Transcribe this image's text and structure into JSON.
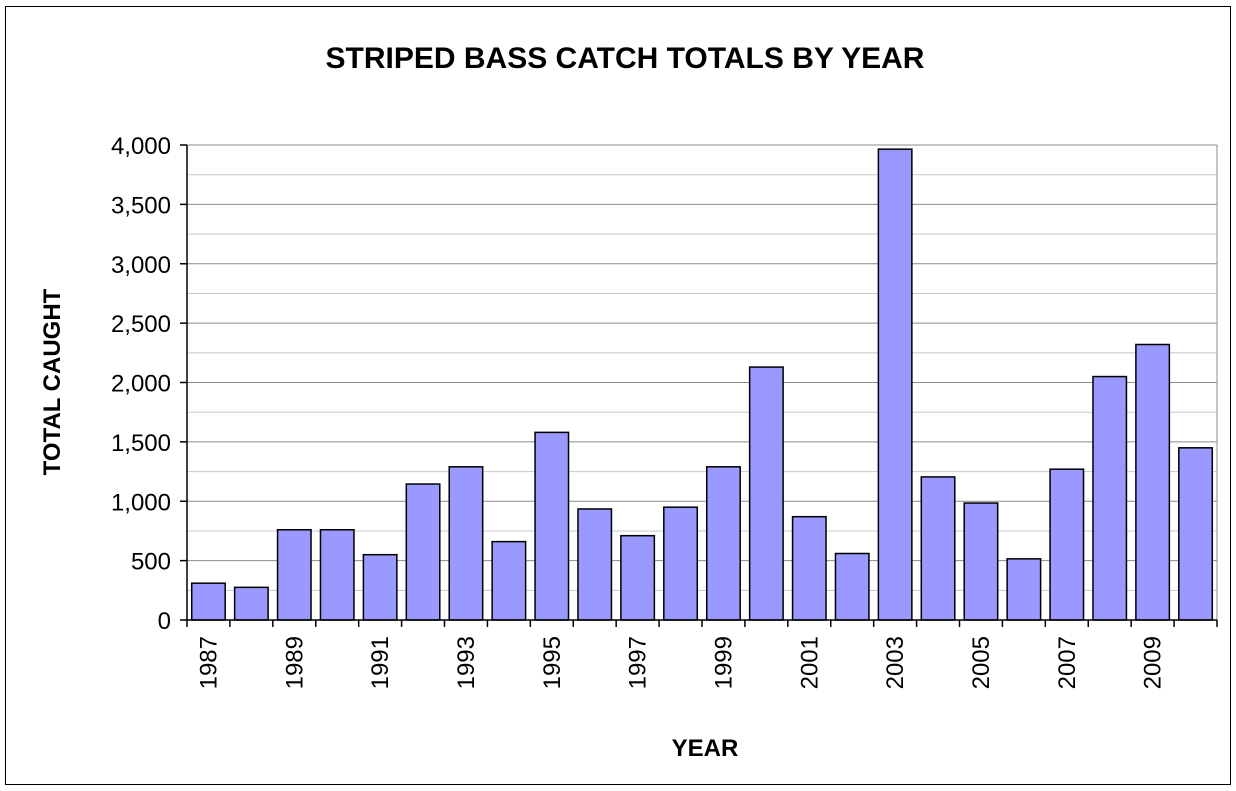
{
  "chart_data": {
    "type": "bar",
    "title": "STRIPED BASS CATCH TOTALS BY YEAR",
    "xlabel": "YEAR",
    "ylabel": "TOTAL CAUGHT",
    "categories": [
      "1987",
      "1988",
      "1989",
      "1990",
      "1991",
      "1992",
      "1993",
      "1994",
      "1995",
      "1996",
      "1997",
      "1998",
      "1999",
      "2000",
      "2001",
      "2002",
      "2003",
      "2004",
      "2005",
      "2006",
      "2007",
      "2008",
      "2009",
      "2010"
    ],
    "x_tick_labels": [
      "1987",
      "",
      "1989",
      "",
      "1991",
      "",
      "1993",
      "",
      "1995",
      "",
      "1997",
      "",
      "1999",
      "",
      "2001",
      "",
      "2003",
      "",
      "2005",
      "",
      "2007",
      "",
      "2009",
      ""
    ],
    "values": [
      310,
      275,
      760,
      760,
      550,
      1145,
      1290,
      660,
      1580,
      935,
      710,
      950,
      1290,
      2130,
      870,
      560,
      3965,
      1205,
      985,
      515,
      1270,
      2050,
      2320,
      1450
    ],
    "ylim": [
      0,
      4000
    ],
    "y_ticks": [
      0,
      500,
      1000,
      1500,
      2000,
      2500,
      3000,
      3500,
      4000
    ],
    "y_tick_labels": [
      "0",
      "500",
      "1,000",
      "1,500",
      "2,000",
      "2,500",
      "3,000",
      "3,500",
      "4,000"
    ],
    "minor_gridlines": true,
    "legend": "none",
    "bar_color": "#9999ff",
    "bar_edge_color": "#000000"
  }
}
